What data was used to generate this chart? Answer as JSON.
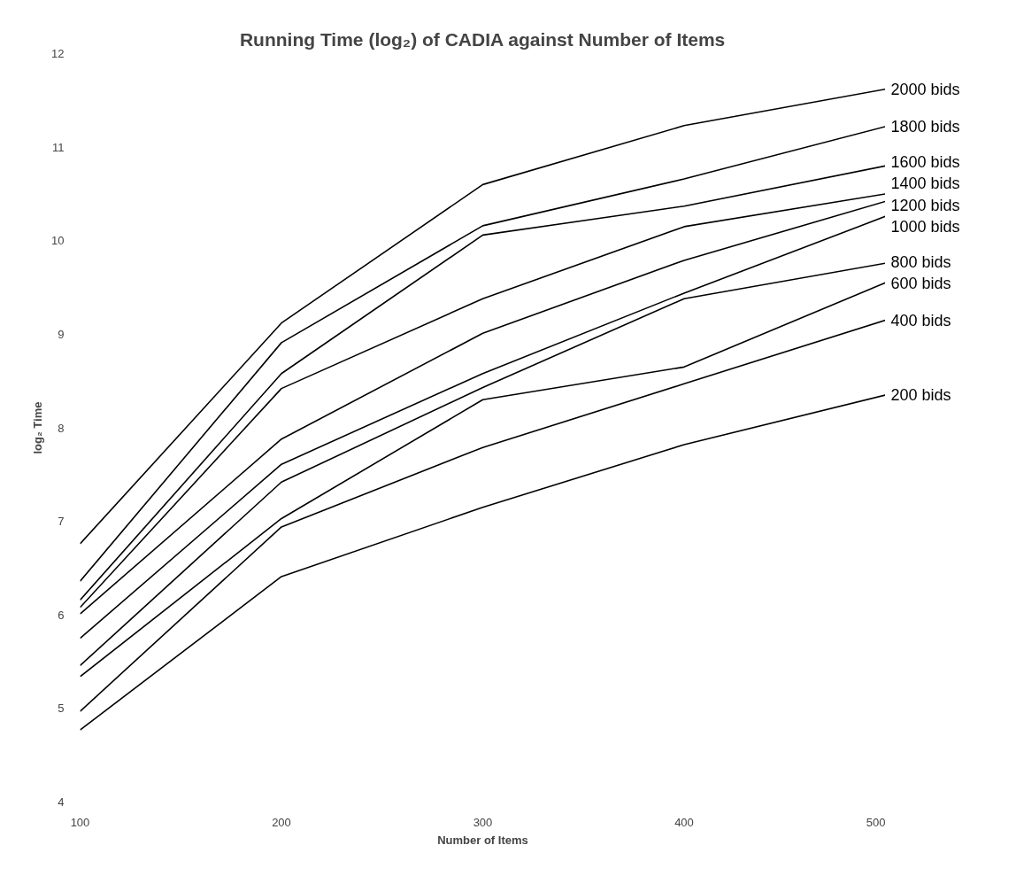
{
  "chart_data": {
    "type": "line",
    "title": "Running Time (log₂) of CADIA against Number of Items",
    "xlabel": "Number of Items",
    "ylabel": "log₂ Time",
    "x": [
      100,
      200,
      300,
      400,
      500
    ],
    "xlim": [
      100,
      500
    ],
    "ylim": [
      4,
      12
    ],
    "xticks": [
      100,
      200,
      300,
      400,
      500
    ],
    "yticks": [
      4,
      5,
      6,
      7,
      8,
      9,
      10,
      11,
      12
    ],
    "grid": false,
    "legend": false,
    "marker": "none",
    "line_style": "solid",
    "series": [
      {
        "name": "2000 bids",
        "color": "#000000",
        "values": [
          6.76,
          9.12,
          10.6,
          11.23,
          11.62
        ]
      },
      {
        "name": "1800 bids",
        "color": "#000000",
        "values": [
          6.36,
          8.91,
          10.16,
          10.66,
          11.22
        ]
      },
      {
        "name": "1600 bids",
        "color": "#000000",
        "values": [
          6.16,
          8.58,
          10.06,
          10.37,
          10.8
        ]
      },
      {
        "name": "1400 bids",
        "color": "#000000",
        "values": [
          6.08,
          8.42,
          9.38,
          10.15,
          10.5
        ]
      },
      {
        "name": "1200 bids",
        "color": "#000000",
        "values": [
          6.01,
          7.88,
          9.01,
          9.79,
          10.42
        ]
      },
      {
        "name": "1000 bids",
        "color": "#000000",
        "values": [
          5.75,
          7.61,
          8.58,
          9.44,
          10.26
        ]
      },
      {
        "name": "800 bids",
        "color": "#000000",
        "values": [
          5.46,
          7.42,
          8.43,
          9.38,
          9.76
        ]
      },
      {
        "name": "600 bids",
        "color": "#000000",
        "values": [
          5.34,
          7.03,
          8.3,
          8.65,
          9.55
        ]
      },
      {
        "name": "400 bids",
        "color": "#000000",
        "values": [
          4.97,
          6.94,
          7.79,
          8.47,
          9.15
        ]
      },
      {
        "name": "200 bids",
        "color": "#000000",
        "values": [
          4.77,
          6.41,
          7.15,
          7.82,
          8.35
        ]
      }
    ]
  }
}
